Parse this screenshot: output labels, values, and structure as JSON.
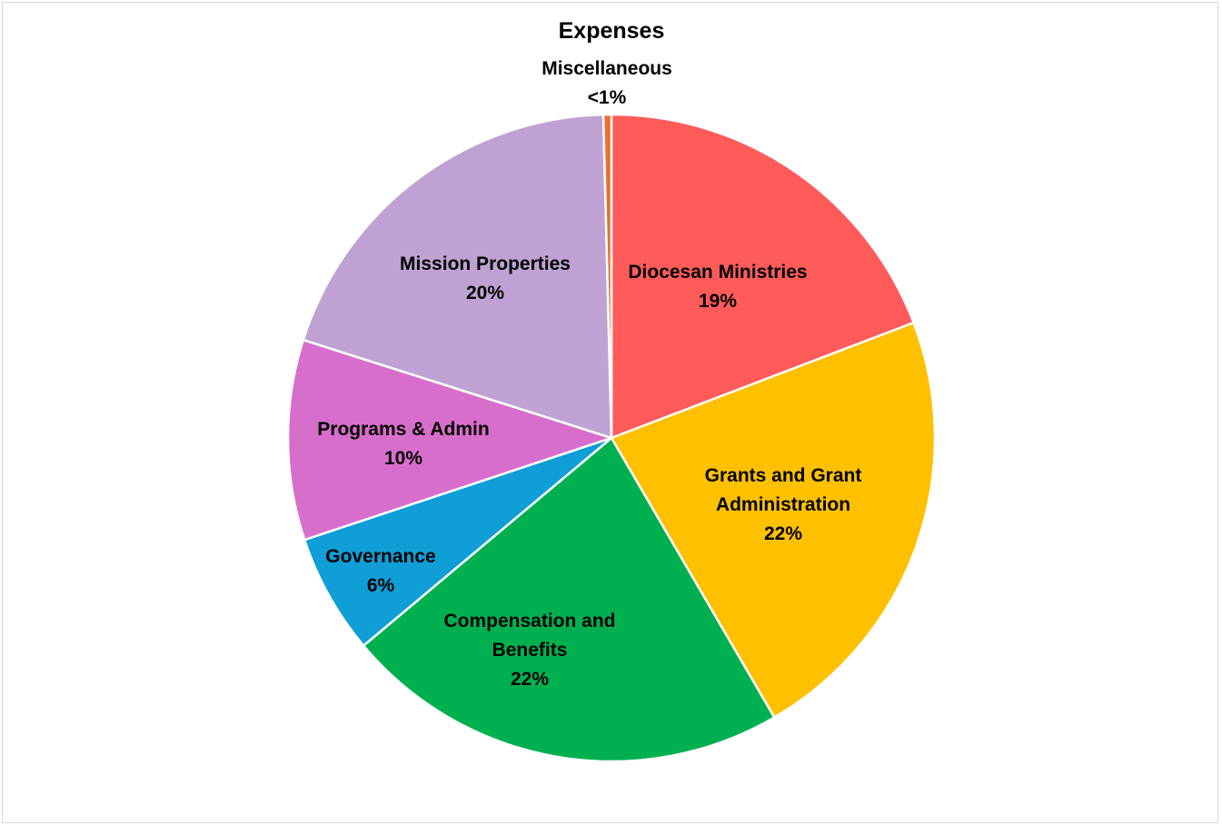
{
  "chart_data": {
    "type": "pie",
    "title": "Expenses",
    "start_angle_deg": 0,
    "direction": "clockwise",
    "slices": [
      {
        "name": "Diocesan Ministries",
        "label_lines": [
          "Diocesan Ministries"
        ],
        "pct_label": "19%",
        "value": 19.2,
        "color": "#FF5B5B"
      },
      {
        "name": "Grants and Grant Administration",
        "label_lines": [
          "Grants and Grant",
          "Administration"
        ],
        "pct_label": "22%",
        "value": 22.4,
        "color": "#FFC000"
      },
      {
        "name": "Compensation and Benefits",
        "label_lines": [
          "Compensation and",
          "Benefits"
        ],
        "pct_label": "22%",
        "value": 22.3,
        "color": "#00B050"
      },
      {
        "name": "Governance",
        "label_lines": [
          "Governance"
        ],
        "pct_label": "6%",
        "value": 6.0,
        "color": "#0F9ED5"
      },
      {
        "name": "Programs & Admin",
        "label_lines": [
          "Programs & Admin"
        ],
        "pct_label": "10%",
        "value": 10.0,
        "color": "#D86ECC"
      },
      {
        "name": "Mission Properties",
        "label_lines": [
          "Mission Properties"
        ],
        "pct_label": "20%",
        "value": 19.7,
        "color": "#BFA2D3"
      },
      {
        "name": "Miscellaneous",
        "label_lines": [
          "Miscellaneous"
        ],
        "pct_label": "<1%",
        "value": 0.4,
        "color": "#E97132"
      }
    ]
  }
}
